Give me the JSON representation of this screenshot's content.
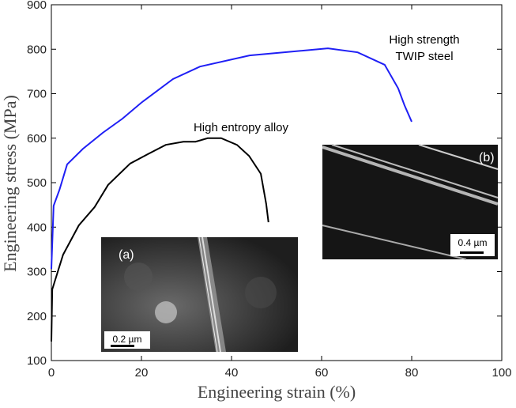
{
  "chart_data": {
    "type": "line",
    "xlabel": "Engineering strain (%)",
    "ylabel": "Engineering stress (MPa)",
    "xlim": [
      0,
      100
    ],
    "xticks": [
      0,
      20,
      40,
      60,
      80,
      100
    ],
    "ylim": [
      100,
      900
    ],
    "yticks": [
      100,
      200,
      300,
      400,
      500,
      600,
      700,
      800,
      900
    ],
    "series": [
      {
        "color": "#1f1ff5",
        "x": [
          0,
          0.5,
          1.8,
          3.5,
          7,
          11.4,
          15.8,
          20,
          27,
          33,
          44,
          61.4,
          68,
          74,
          77,
          78.4,
          80
        ],
        "values": [
          306,
          448,
          484,
          541,
          576,
          612,
          644,
          680,
          733,
          761,
          786,
          802,
          793,
          765,
          712,
          674,
          637
        ]
      },
      {
        "color": "#000000",
        "x": [
          0,
          0.2,
          2.6,
          6.1,
          9.6,
          12.6,
          17.5,
          21.4,
          25.4,
          29.3,
          32,
          34.7,
          37.7,
          41.2,
          43.9,
          46.5,
          47.7,
          48.2
        ],
        "values": [
          143,
          260,
          338,
          404,
          445,
          495,
          543,
          564,
          585,
          592,
          592,
          600,
          600,
          585,
          560,
          520,
          452,
          411
        ]
      }
    ],
    "annotations": [
      [
        "High strength",
        "TWIP steel"
      ],
      [
        "High entropy alloy"
      ]
    ],
    "insets": [
      {
        "label": "(a)",
        "scale_bar": "0.2 µm"
      },
      {
        "label": "(b)",
        "scale_bar": "0.4 µm"
      }
    ]
  }
}
